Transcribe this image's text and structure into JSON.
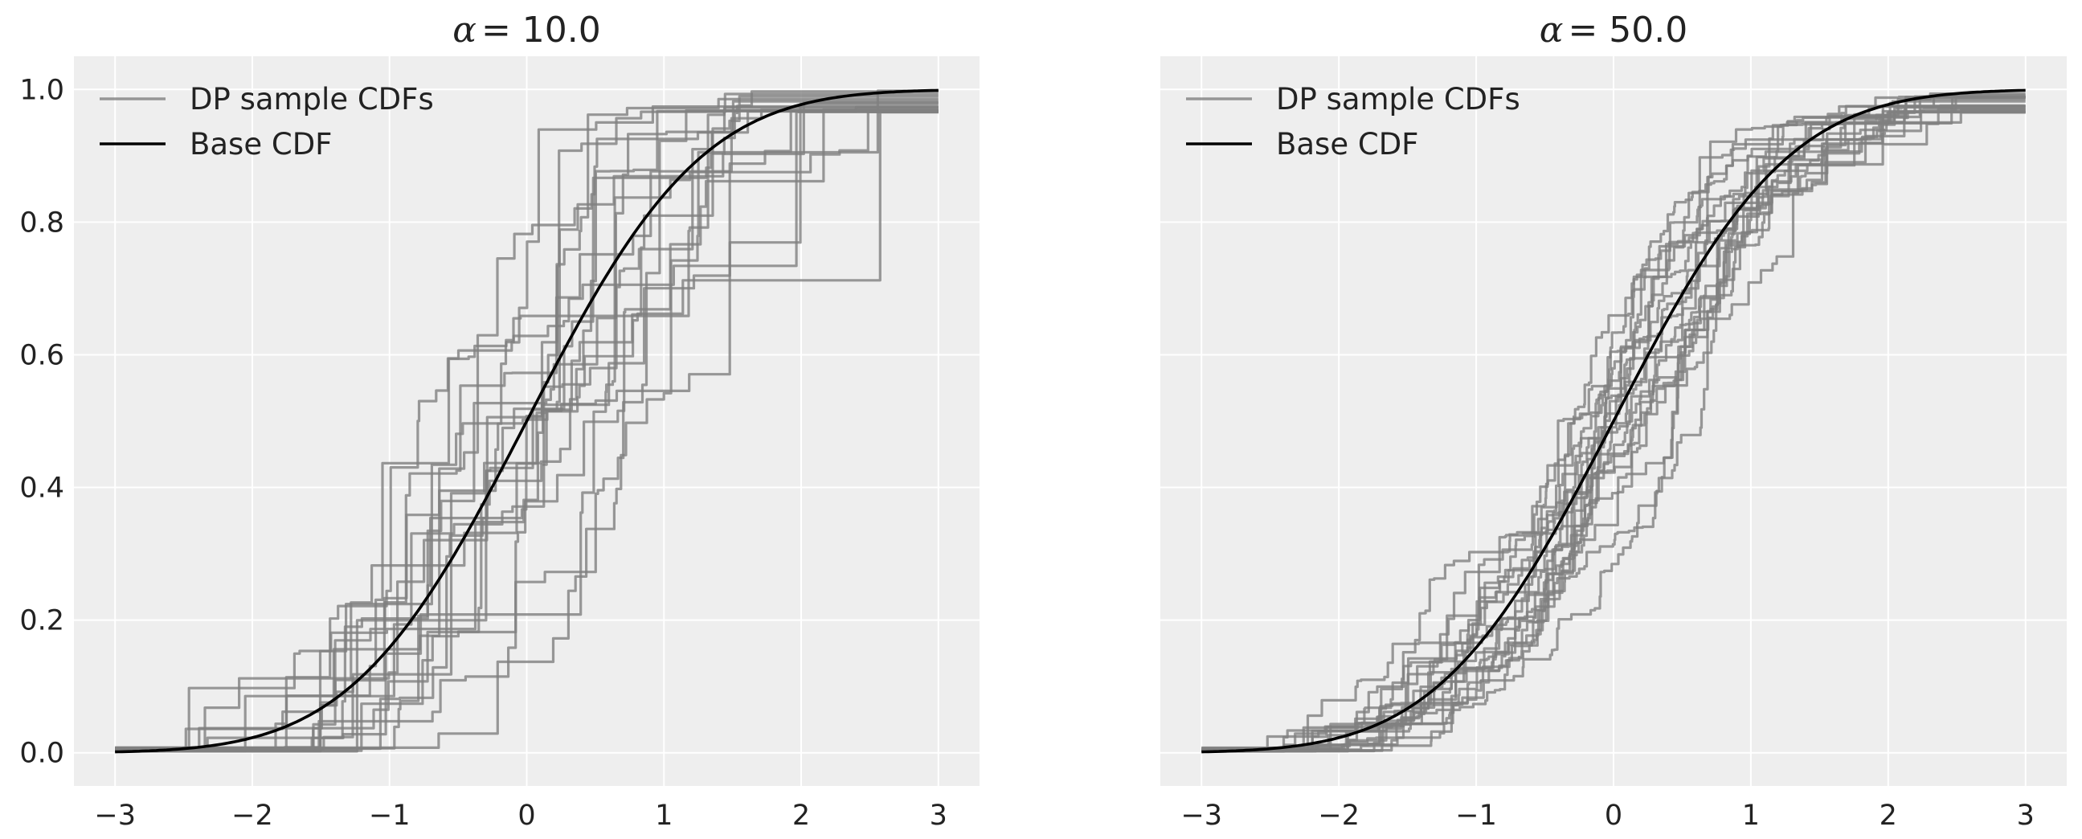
{
  "chart_data": [
    {
      "type": "line",
      "title_prefix": "α",
      "title_value": "= 10.0",
      "alpha": 10.0,
      "xlim": [
        -3.3,
        3.3
      ],
      "ylim": [
        -0.05,
        1.05
      ],
      "xticks": [
        -3,
        -2,
        -1,
        0,
        1,
        2,
        3
      ],
      "xtick_labels": [
        "−3",
        "−2",
        "−1",
        "0",
        "1",
        "2",
        "3"
      ],
      "yticks": [
        0.0,
        0.2,
        0.4,
        0.6,
        0.8,
        1.0
      ],
      "ytick_labels": [
        "0.0",
        "0.2",
        "0.4",
        "0.6",
        "0.8",
        "1.0"
      ],
      "grid": true,
      "legend_position": "top-left",
      "legend": [
        {
          "label": "DP sample CDFs",
          "color": "#808080"
        },
        {
          "label": "Base CDF",
          "color": "#000000"
        }
      ],
      "series": [
        {
          "name": "DP sample CDFs",
          "color": "#808080",
          "n_samples": 20,
          "steps_per_sample": 16,
          "x_range": [
            -3,
            3
          ],
          "tail_y_range": [
            0.965,
            0.998
          ]
        },
        {
          "name": "Base CDF",
          "color": "#000000",
          "distribution": "standard normal",
          "x_range": [
            -3,
            3
          ]
        }
      ]
    },
    {
      "type": "line",
      "title_prefix": "α",
      "title_value": "= 50.0",
      "alpha": 50.0,
      "xlim": [
        -3.3,
        3.3
      ],
      "ylim": [
        -0.05,
        1.05
      ],
      "xticks": [
        -3,
        -2,
        -1,
        0,
        1,
        2,
        3
      ],
      "xtick_labels": [
        "−3",
        "−2",
        "−1",
        "0",
        "1",
        "2",
        "3"
      ],
      "yticks": [
        0.0,
        0.2,
        0.4,
        0.6,
        0.8,
        1.0
      ],
      "ytick_labels": [],
      "grid": true,
      "legend_position": "top-left",
      "legend": [
        {
          "label": "DP sample CDFs",
          "color": "#808080"
        },
        {
          "label": "Base CDF",
          "color": "#000000"
        }
      ],
      "series": [
        {
          "name": "DP sample CDFs",
          "color": "#808080",
          "n_samples": 20,
          "steps_per_sample": 60,
          "x_range": [
            -3,
            3
          ],
          "tail_y_range": [
            0.965,
            0.995
          ]
        },
        {
          "name": "Base CDF",
          "color": "#000000",
          "distribution": "standard normal",
          "x_range": [
            -3,
            3
          ]
        }
      ]
    }
  ]
}
